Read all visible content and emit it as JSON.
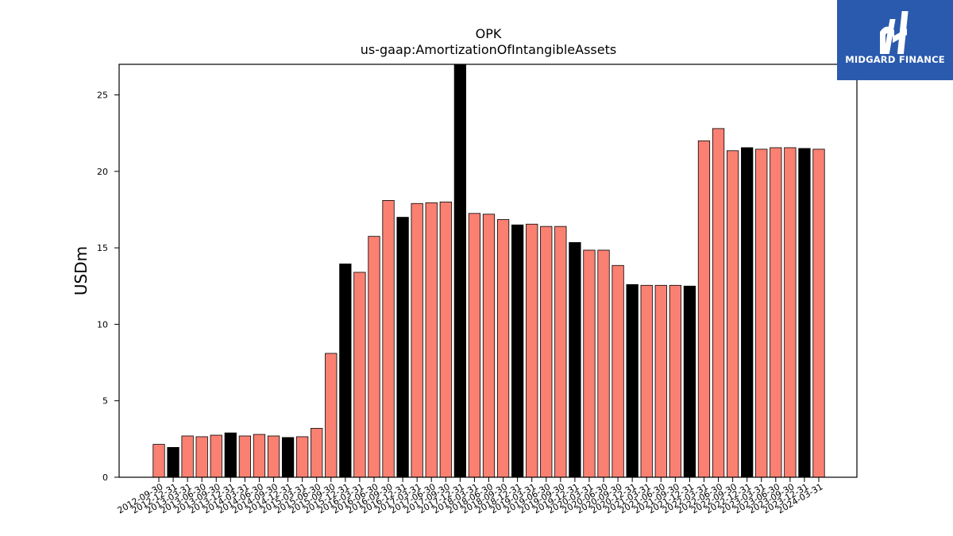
{
  "chart_data": {
    "type": "bar",
    "title": "OPK",
    "subtitle": "us-gaap:AmortizationOfIntangibleAssets",
    "xlabel": "",
    "ylabel": "USDm",
    "ylim": [
      0,
      27
    ],
    "yticks": [
      0,
      5,
      10,
      15,
      20,
      25
    ],
    "grid": false,
    "colors": {
      "quarterly": "#fa8072",
      "annual": "#000000",
      "edge": "#000000"
    },
    "categories": [
      "2012-09-30",
      "2012-12-31",
      "2013-03-31",
      "2013-06-30",
      "2013-09-30",
      "2013-12-31",
      "2014-03-31",
      "2014-06-30",
      "2014-09-30",
      "2014-12-31",
      "2015-03-31",
      "2015-06-30",
      "2015-09-30",
      "2015-12-31",
      "2016-03-31",
      "2016-06-30",
      "2016-09-30",
      "2016-12-31",
      "2017-03-31",
      "2017-06-30",
      "2017-09-30",
      "2017-12-31",
      "2018-03-31",
      "2018-06-30",
      "2018-09-30",
      "2018-12-31",
      "2019-03-31",
      "2019-06-30",
      "2019-09-30",
      "2019-12-31",
      "2020-03-31",
      "2020-06-30",
      "2020-09-30",
      "2020-12-31",
      "2021-03-31",
      "2021-06-30",
      "2021-09-30",
      "2021-12-31",
      "2022-03-31",
      "2022-06-30",
      "2022-09-30",
      "2022-12-31",
      "2023-03-31",
      "2023-06-30",
      "2023-09-30",
      "2023-12-31",
      "2024-03-31"
    ],
    "values": [
      2.15,
      1.95,
      2.7,
      2.65,
      2.75,
      2.9,
      2.7,
      2.8,
      2.7,
      2.6,
      2.65,
      3.2,
      8.1,
      13.95,
      13.4,
      15.75,
      18.1,
      17.0,
      17.9,
      17.95,
      18.0,
      27.0,
      17.25,
      17.2,
      16.85,
      16.5,
      16.55,
      16.4,
      16.4,
      15.35,
      14.85,
      14.85,
      13.85,
      12.6,
      12.55,
      12.55,
      12.55,
      12.5,
      22.0,
      22.8,
      21.35,
      21.55,
      21.45,
      21.55,
      21.55,
      21.5,
      21.45
    ],
    "annual_flags": [
      0,
      1,
      0,
      0,
      0,
      1,
      0,
      0,
      0,
      1,
      0,
      0,
      0,
      1,
      0,
      0,
      0,
      1,
      0,
      0,
      0,
      1,
      0,
      0,
      0,
      1,
      0,
      0,
      0,
      1,
      0,
      0,
      0,
      1,
      0,
      0,
      0,
      1,
      0,
      0,
      0,
      1,
      0,
      0,
      0,
      1,
      0
    ],
    "shown_tick_labels": [
      "2012-09-30",
      "2012-12-31",
      "2013-03-31",
      "2013-06-30",
      "2013-09-30",
      "2013-12-31",
      "2014-03-31",
      "2014-06-30",
      "2014-09-30",
      "2014-12-31",
      "2015-03-31",
      "2015-06-30",
      "2015-09-30",
      "2015-12-31",
      "2016-03-31",
      "2016-06-30",
      "2016-09-30",
      "2016-12-31",
      "2017-03-31",
      "2017-06-30",
      "2017-09-30",
      "2017-12-31",
      "2018-03-31",
      "2018-06-30",
      "2018-09-30",
      "2018-12-31",
      "2019-03-31",
      "2019-06-30",
      "2019-09-30",
      "2019-12-31",
      "2020-03-31",
      "2020-06-30",
      "2020-09-30",
      "2020-12-31",
      "2021-03-31",
      "2021-06-30",
      "2021-09-30",
      "2021-12-31",
      "2022-03-31",
      "2022-06-30",
      "2022-09-30",
      "2022-12-31",
      "2023-03-31",
      "2023-06-30",
      "2023-09-30",
      "2023-12-31",
      "2024-03-31"
    ]
  },
  "logo": {
    "text": "MIDGARD FINANCE",
    "icon": "midgard-logo-icon",
    "color": "#2a5aad"
  }
}
